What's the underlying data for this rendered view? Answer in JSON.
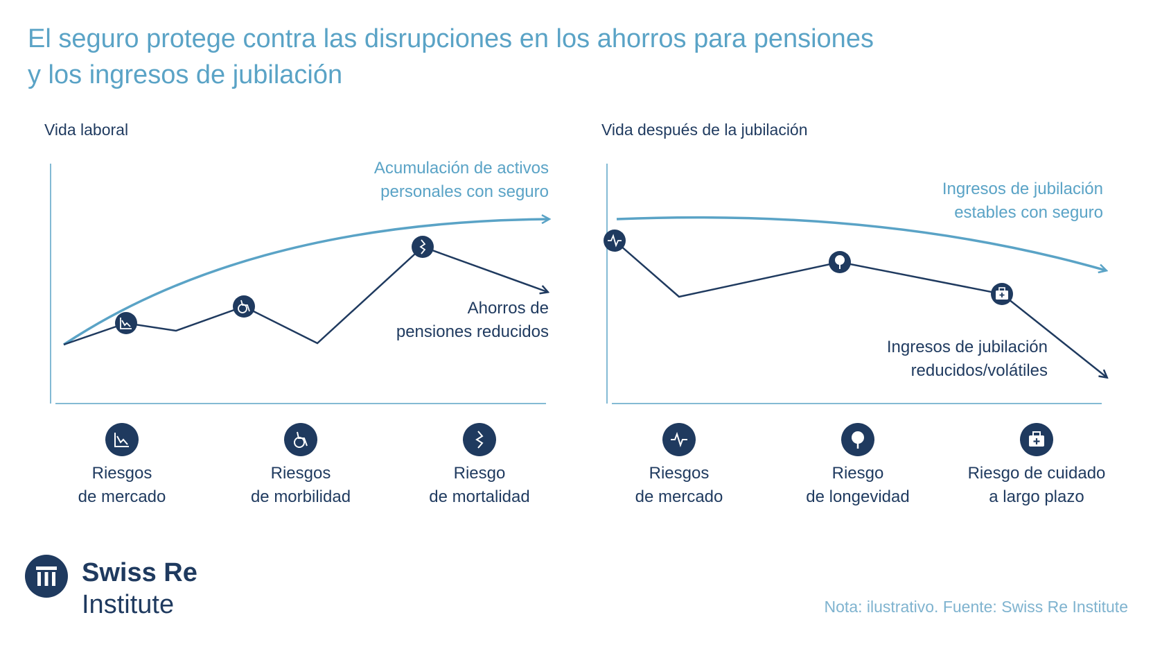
{
  "title_line1": "El seguro protege contra las disrupciones en los ahorros para pensiones",
  "title_line2": "y los ingresos de jubilación",
  "colors": {
    "teal": "#5aa3c6",
    "navy": "#1f3a5f",
    "light_teal": "#7fb3cf"
  },
  "left_panel": {
    "label": "Vida laboral",
    "insured_label_line1": "Acumulación de activos",
    "insured_label_line2": "personales con seguro",
    "uninsured_label_line1": "Ahorros de",
    "uninsured_label_line2": "pensiones reducidos",
    "risks": [
      {
        "icon": "market-chart-icon",
        "line1": "Riesgos",
        "line2": "de mercado"
      },
      {
        "icon": "wheelchair-icon",
        "line1": "Riesgos",
        "line2": "de morbilidad"
      },
      {
        "icon": "broken-line-icon",
        "line1": "Riesgo",
        "line2": "de mortalidad"
      }
    ]
  },
  "right_panel": {
    "label": "Vida después de la jubilación",
    "insured_label_line1": "Ingresos de jubilación",
    "insured_label_line2": "estables con seguro",
    "uninsured_label_line1": "Ingresos de jubilación",
    "uninsured_label_line2": "reducidos/volátiles",
    "risks": [
      {
        "icon": "heartbeat-icon",
        "line1": "Riesgos",
        "line2": "de mercado"
      },
      {
        "icon": "tree-icon",
        "line1": "Riesgo",
        "line2": "de longevidad"
      },
      {
        "icon": "medical-kit-icon",
        "line1": "Riesgo de cuidado",
        "line2": "a largo plazo"
      }
    ]
  },
  "logo": {
    "line1": "Swiss Re",
    "line2": "Institute"
  },
  "note": "Nota: ilustrativo. Fuente: Swiss Re Institute"
}
